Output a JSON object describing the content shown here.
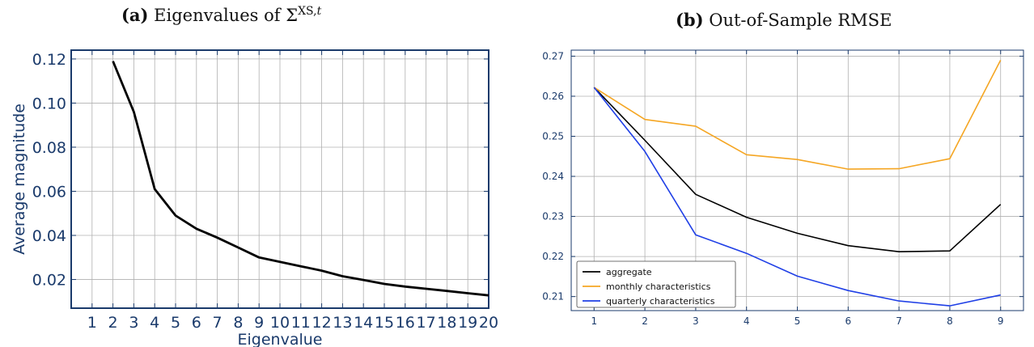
{
  "panels": {
    "a": {
      "tag": "(a)",
      "title_text": "Eigenvalues of Σ",
      "title_sup": "XS,",
      "title_sup_italic": "t"
    },
    "b": {
      "tag": "(b)",
      "title_text": "Out-of-Sample RMSE"
    }
  },
  "chart_data": [
    {
      "type": "line",
      "title": "(a) Eigenvalues of Σ^{XS,t}",
      "xlabel": "Eigenvalue",
      "ylabel": "Average magnitude",
      "xlim": [
        0,
        20
      ],
      "ylim": [
        0.007,
        0.124
      ],
      "x_ticks": [
        1,
        2,
        3,
        4,
        5,
        6,
        7,
        8,
        9,
        10,
        11,
        12,
        13,
        14,
        15,
        16,
        17,
        18,
        19,
        20
      ],
      "y_ticks": [
        0.02,
        0.04,
        0.06,
        0.08,
        0.1,
        0.12
      ],
      "y_tick_labels": [
        "0.02",
        "0.04",
        "0.06",
        "0.08",
        "0.10",
        "0.12"
      ],
      "grid": true,
      "series": [
        {
          "color": "#000000",
          "x": [
            2,
            3,
            4,
            5,
            6,
            7,
            8,
            9,
            10,
            11,
            12,
            13,
            14,
            15,
            16,
            17,
            18,
            19,
            20
          ],
          "y": [
            0.119,
            0.096,
            0.061,
            0.049,
            0.043,
            0.039,
            0.0345,
            0.03,
            0.028,
            0.026,
            0.024,
            0.0215,
            0.0198,
            0.018,
            0.0168,
            0.0158,
            0.0148,
            0.0138,
            0.0128
          ]
        }
      ]
    },
    {
      "type": "line",
      "title": "(b) Out-of-Sample RMSE",
      "xlabel": "",
      "ylabel": "",
      "xlim": [
        0.55,
        9.45
      ],
      "ylim": [
        0.2065,
        0.2715
      ],
      "x_ticks": [
        1,
        2,
        3,
        4,
        5,
        6,
        7,
        8,
        9
      ],
      "y_ticks": [
        0.21,
        0.22,
        0.23,
        0.24,
        0.25,
        0.26,
        0.27
      ],
      "y_tick_labels": [
        "0.21",
        "0.22",
        "0.23",
        "0.24",
        "0.25",
        "0.26",
        "0.27"
      ],
      "grid": true,
      "legend_position": "lower-left",
      "series": [
        {
          "name": "aggregate",
          "color": "#000000",
          "x": [
            1,
            2,
            3,
            4,
            5,
            6,
            7,
            8,
            9
          ],
          "y": [
            0.2622,
            0.249,
            0.2355,
            0.2298,
            0.2258,
            0.2227,
            0.2212,
            0.2214,
            0.233
          ]
        },
        {
          "name": "monthly characteristics",
          "color": "#f5a623",
          "x": [
            1,
            2,
            3,
            4,
            5,
            6,
            7,
            8,
            9
          ],
          "y": [
            0.2622,
            0.2542,
            0.2525,
            0.2454,
            0.2442,
            0.2418,
            0.2419,
            0.2444,
            0.269
          ]
        },
        {
          "name": "quarterly characteristics",
          "color": "#1f3fe6",
          "x": [
            1,
            2,
            3,
            4,
            5,
            6,
            7,
            8,
            9
          ],
          "y": [
            0.2622,
            0.2462,
            0.2254,
            0.2208,
            0.2151,
            0.2115,
            0.2089,
            0.2077,
            0.2104
          ]
        }
      ]
    }
  ]
}
